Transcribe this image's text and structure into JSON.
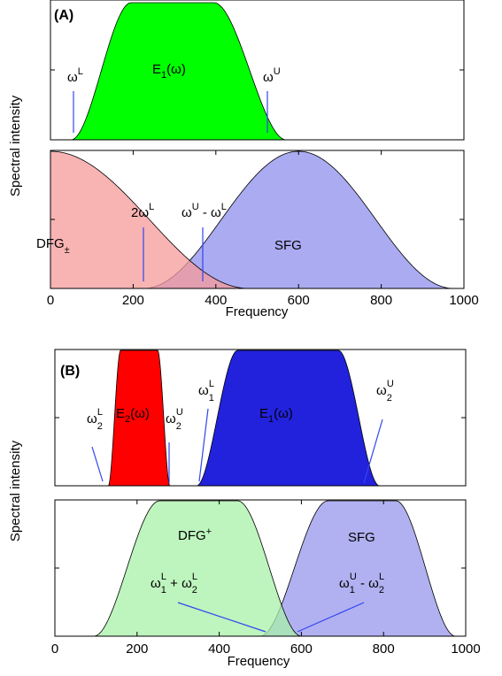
{
  "chart_data": [
    {
      "type": "area",
      "panel_label": "(A)",
      "ylabel": "Spectral intensity",
      "subplots": [
        {
          "xlim": [
            0,
            1000
          ],
          "grid": false,
          "series": [
            {
              "name": "E1(ω)",
              "color": "#00ff00",
              "shape": "flat-top",
              "start": 50,
              "end": 570,
              "plateau": [
                195,
                395
              ],
              "max": 1.0
            }
          ],
          "markers": [
            {
              "x": 60,
              "label": "ωL",
              "color": "#3344ee"
            },
            {
              "x": 532,
              "label": "ωU",
              "color": "#3344ee"
            }
          ],
          "annotations": [
            {
              "text": "E",
              "sub": "1",
              "rest": "(ω)"
            },
            {
              "text": "ω",
              "sup": "L"
            },
            {
              "text": "ω",
              "sup": "U"
            }
          ]
        },
        {
          "xlim": [
            0,
            1000
          ],
          "grid": false,
          "xlabel": "Frequency",
          "xticks": [
            0,
            200,
            400,
            600,
            800,
            1000
          ],
          "series": [
            {
              "name": "DFG±",
              "color": "#f59a9a",
              "shape": "half-bell",
              "start": 0,
              "end": 480,
              "peak_x": 0,
              "max": 1.0
            },
            {
              "name": "SFG",
              "color": "#9c9cf0",
              "shape": "bell",
              "start": 225,
              "end": 975,
              "peak_x": 600,
              "max": 1.0
            }
          ],
          "markers": [
            {
              "x": 230,
              "label": "2ωL",
              "color": "#3344ee"
            },
            {
              "x": 375,
              "label": "ωU - ωL",
              "color": "#3344ee"
            }
          ],
          "annotations": [
            {
              "text": "DFG",
              "sub": "±"
            },
            {
              "text": "SFG"
            },
            {
              "text": "2ω",
              "sup": "L"
            },
            {
              "text": "ω",
              "sup": "U",
              "rest": " - ω",
              "sup2": "L"
            }
          ]
        }
      ]
    },
    {
      "type": "area",
      "panel_label": "(B)",
      "ylabel": "Spectral intensity",
      "subplots": [
        {
          "xlim": [
            0,
            1000
          ],
          "grid": false,
          "series": [
            {
              "name": "E2(ω)",
              "color": "#ff0000",
              "shape": "flat-top",
              "start": 130,
              "end": 280,
              "plateau": [
                160,
                250
              ],
              "max": 1.0
            },
            {
              "name": "E1(ω)",
              "color": "#2222dd",
              "shape": "flat-top",
              "start": 345,
              "end": 790,
              "plateau": [
                445,
                690
              ],
              "max": 1.0
            }
          ],
          "markers": [
            {
              "label": "ω2L",
              "x_base": 120,
              "x_tip": 100,
              "color": "#3344ee"
            },
            {
              "label": "ω2U",
              "x_base": 280,
              "x_tip": 280,
              "color": "#3344ee"
            },
            {
              "label": "ω1L",
              "x_base": 350,
              "x_tip": 370,
              "color": "#3344ee"
            },
            {
              "label": "ω2U",
              "x_base": 755,
              "x_tip": 800,
              "color": "#3344ee"
            }
          ],
          "annotations": [
            {
              "text": "E",
              "sub": "2",
              "rest": "(ω)"
            },
            {
              "text": "E",
              "sub": "1",
              "rest": "(ω)"
            },
            {
              "text": "ω",
              "sub": "2",
              "sup": "L"
            },
            {
              "text": "ω",
              "sub": "2",
              "sup": "U"
            },
            {
              "text": "ω",
              "sub": "1",
              "sup": "L"
            },
            {
              "text": "ω",
              "sub": "2",
              "sup": "U"
            }
          ]
        },
        {
          "xlim": [
            0,
            1000
          ],
          "grid": false,
          "xlabel": "Frequency",
          "xticks": [
            0,
            200,
            400,
            600,
            800,
            1000
          ],
          "series": [
            {
              "name": "DFG+",
              "color": "#a8f0a8",
              "shape": "flat-top",
              "start": 95,
              "end": 600,
              "plateau": [
                255,
                445
              ],
              "max": 1.0
            },
            {
              "name": "SFG",
              "color": "#a8a8f0",
              "shape": "flat-top",
              "start": 500,
              "end": 975,
              "plateau": [
                665,
                830
              ],
              "max": 1.0
            }
          ],
          "markers": [
            {
              "label": "ω1L + ω2L",
              "x_from": 300,
              "x_to": 510,
              "color": "#3344ee"
            },
            {
              "label": "ω1U - ω2L",
              "x_from": 590,
              "x_to": 755,
              "color": "#3344ee"
            }
          ],
          "annotations": [
            {
              "text": "DFG",
              "sub": "+"
            },
            {
              "text": "SFG"
            },
            {
              "text": "ω",
              "sub": "1",
              "sup": "L",
              "rest": " + ω",
              "sub2": "2",
              "sup2": "L"
            },
            {
              "text": "ω",
              "sub": "1",
              "sup": "U",
              "rest": " - ω",
              "sub2": "2",
              "sup2": "L"
            }
          ]
        }
      ]
    }
  ],
  "tick_labels": [
    "0",
    "200",
    "400",
    "600",
    "800",
    "1000"
  ],
  "labels": {
    "panel_a": "(A)",
    "panel_b": "(B)",
    "ylabel": "Spectral intensity",
    "xlabel": "Frequency",
    "E": "E",
    "omega": "ω",
    "omega_paren": "(ω)",
    "one": "1",
    "two": "2",
    "L": "L",
    "U": "U",
    "DFG": "DFG",
    "pm": "±",
    "plus": "+",
    "SFG": "SFG",
    "two_omega": "2ω",
    "minus_omega": " - ω",
    "plus_omega": " + ω"
  }
}
